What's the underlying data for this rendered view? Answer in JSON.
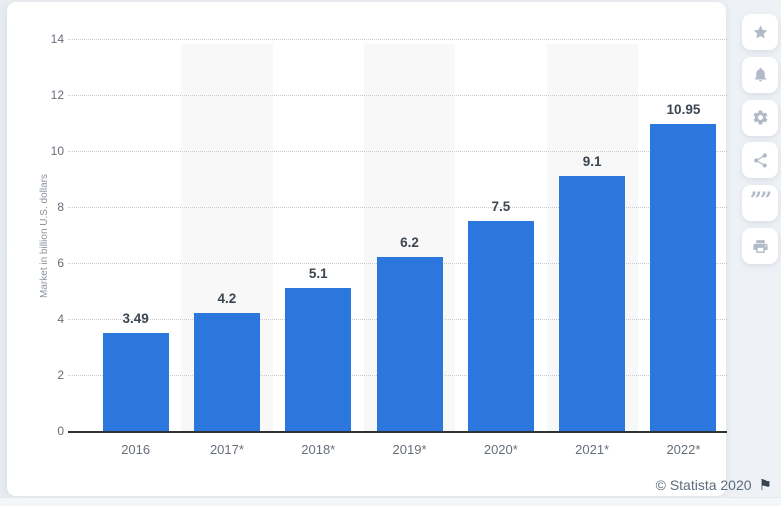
{
  "chart_data": {
    "type": "bar",
    "title": "",
    "categories": [
      "2016",
      "2017*",
      "2018*",
      "2019*",
      "2020*",
      "2021*",
      "2022*"
    ],
    "values": [
      3.49,
      4.2,
      5.1,
      6.2,
      7.5,
      9.1,
      10.95
    ],
    "value_labels": [
      "3.49",
      "4.2",
      "5.1",
      "6.2",
      "7.5",
      "9.1",
      "10.95"
    ],
    "xlabel": "",
    "ylabel": "Market in billion U.S. dollars",
    "ylim": [
      0,
      14
    ],
    "yticks": [
      0,
      2,
      4,
      6,
      8,
      10,
      12,
      14
    ],
    "grid": "horizontal-dotted",
    "legend": "none",
    "bar_color": "#2b77dd",
    "stripe_color": "#f8f8f9",
    "label_color": "#3b4650",
    "tick_color": "#666f79"
  },
  "sidebar": {
    "icons": [
      {
        "name": "star-icon"
      },
      {
        "name": "bell-icon"
      },
      {
        "name": "gear-icon"
      },
      {
        "name": "share-icon"
      },
      {
        "name": "quote-icon"
      },
      {
        "name": "print-icon"
      }
    ]
  },
  "footer": {
    "copyright": "© Statista 2020",
    "flag_icon": "⚑"
  }
}
